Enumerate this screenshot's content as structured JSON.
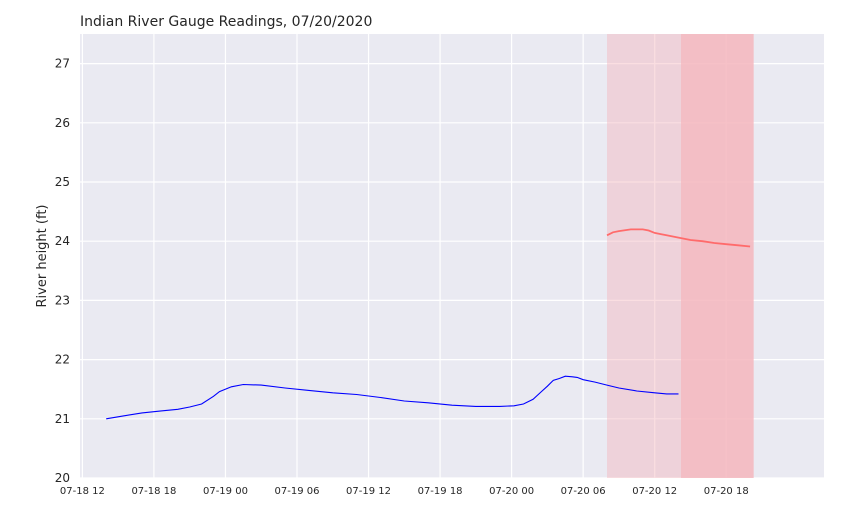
{
  "chart_data": {
    "type": "line",
    "title": "Indian River Gauge Readings, 07/20/2020",
    "xlabel": "",
    "ylabel": "River height (ft)",
    "ylim": [
      20,
      27.5
    ],
    "yticks": [
      20,
      21,
      22,
      23,
      24,
      25,
      26,
      27
    ],
    "x_hours_range": [
      -42.2,
      20.2
    ],
    "xticks": [
      {
        "hours": -42,
        "label": "07-18 12"
      },
      {
        "hours": -36,
        "label": "07-18 18"
      },
      {
        "hours": -30,
        "label": "07-19 00"
      },
      {
        "hours": -24,
        "label": "07-19 06"
      },
      {
        "hours": -18,
        "label": "07-19 12"
      },
      {
        "hours": -12,
        "label": "07-19 18"
      },
      {
        "hours": -6,
        "label": "07-20 00"
      },
      {
        "hours": 0,
        "label": "07-20 06"
      },
      {
        "hours": 6,
        "label": "07-20 12"
      },
      {
        "hours": 12,
        "label": "07-20 18"
      }
    ],
    "grid": true,
    "background": "#eaeaf2",
    "series": [
      {
        "name": "",
        "color": "#0000ff",
        "x_hours": [
          -40,
          -38.5,
          -37,
          -35.5,
          -34,
          -33,
          -32,
          -31,
          -30.5,
          -29.5,
          -28.5,
          -27,
          -25,
          -23,
          -21,
          -19,
          -17,
          -15,
          -13,
          -11,
          -9,
          -7,
          -5.8,
          -5,
          -4.2,
          -3.5,
          -3,
          -2.5,
          -2,
          -1.5,
          -0.9,
          -0.5,
          0,
          1,
          2,
          3,
          4.5,
          6,
          7,
          8
        ],
        "values": [
          21.0,
          21.05,
          21.1,
          21.13,
          21.16,
          21.2,
          21.25,
          21.38,
          21.46,
          21.54,
          21.58,
          21.57,
          21.52,
          21.48,
          21.44,
          21.41,
          21.36,
          21.3,
          21.27,
          21.23,
          21.21,
          21.21,
          21.22,
          21.25,
          21.33,
          21.46,
          21.55,
          21.65,
          21.68,
          21.72,
          21.71,
          21.7,
          21.66,
          21.62,
          21.57,
          21.52,
          21.47,
          21.44,
          21.42,
          21.42
        ]
      },
      {
        "name": "",
        "color": "#ff6b6b",
        "x_hours": [
          2,
          2.5,
          3,
          4,
          5,
          5.5,
          6,
          6.5,
          7,
          8,
          9,
          10,
          11,
          12,
          13,
          14
        ],
        "values": [
          24.1,
          24.15,
          24.17,
          24.2,
          24.2,
          24.18,
          24.14,
          24.12,
          24.1,
          24.06,
          24.02,
          24.0,
          23.97,
          23.95,
          23.93,
          23.91
        ]
      }
    ],
    "shaded_regions": [
      {
        "x_start_hours": 2,
        "x_end_hours": 8.2,
        "color": "#f4b6bd",
        "opacity": 0.45
      },
      {
        "x_start_hours": 8.2,
        "x_end_hours": 14.3,
        "color": "#f4b6bd",
        "opacity": 0.85
      }
    ]
  }
}
